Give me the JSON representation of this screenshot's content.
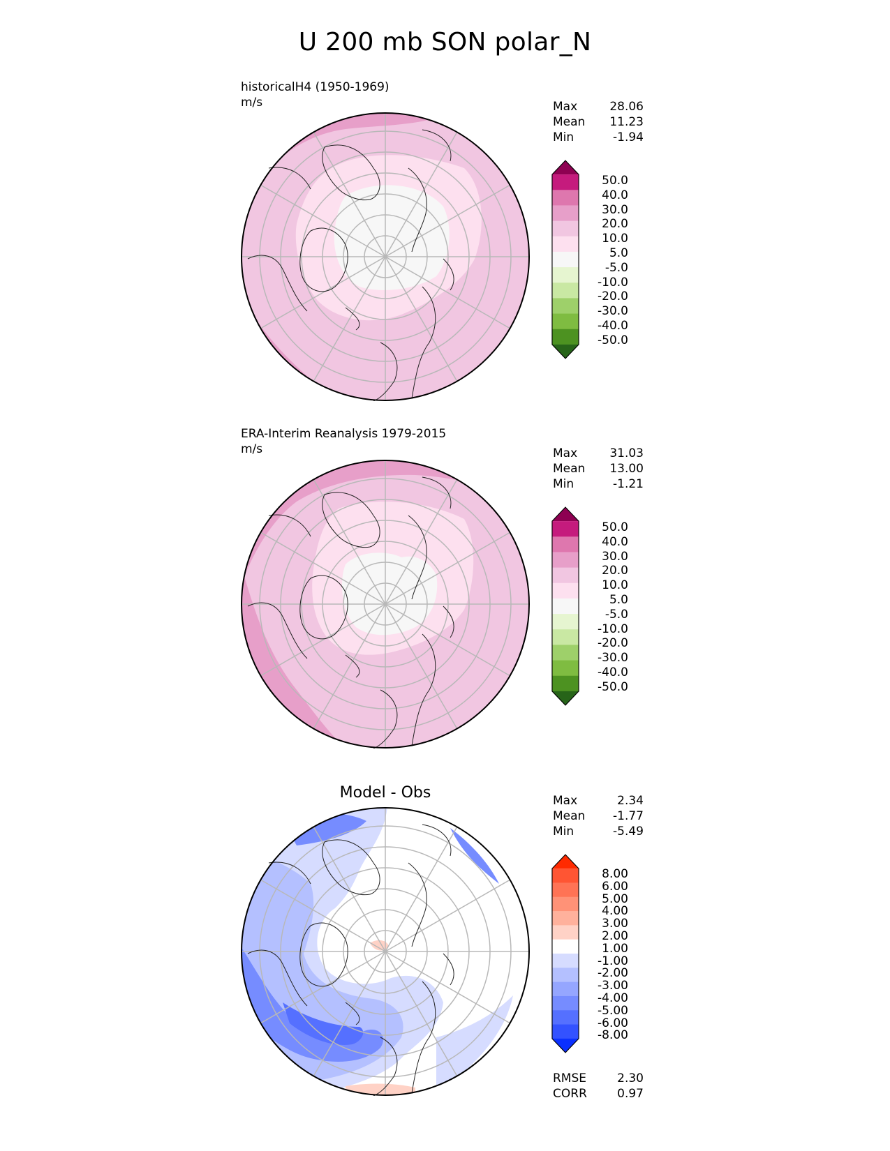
{
  "title": "U 200 mb SON polar_N",
  "panels": [
    {
      "label": "historicalH4 (1950-1969)",
      "units": "m/s",
      "stats": [
        {
          "name": "Max",
          "value": "28.06"
        },
        {
          "name": "Mean",
          "value": "11.23"
        },
        {
          "name": "Min",
          "value": "-1.94"
        }
      ],
      "colorbar_ticks": [
        "50.0",
        "40.0",
        "30.0",
        "20.0",
        "10.0",
        "5.0",
        "-5.0",
        "-10.0",
        "-20.0",
        "-30.0",
        "-40.0",
        "-50.0"
      ]
    },
    {
      "label": "ERA-Interim Reanalysis 1979-2015",
      "units": "m/s",
      "stats": [
        {
          "name": "Max",
          "value": "31.03"
        },
        {
          "name": "Mean",
          "value": "13.00"
        },
        {
          "name": "Min",
          "value": "-1.21"
        }
      ],
      "colorbar_ticks": [
        "50.0",
        "40.0",
        "30.0",
        "20.0",
        "10.0",
        "5.0",
        "-5.0",
        "-10.0",
        "-20.0",
        "-30.0",
        "-40.0",
        "-50.0"
      ]
    },
    {
      "title": "Model - Obs",
      "stats": [
        {
          "name": "Max",
          "value": "2.34"
        },
        {
          "name": "Mean",
          "value": "-1.77"
        },
        {
          "name": "Min",
          "value": "-5.49"
        }
      ],
      "colorbar_ticks": [
        "8.00",
        "6.00",
        "5.00",
        "4.00",
        "3.00",
        "2.00",
        "1.00",
        "-1.00",
        "-2.00",
        "-3.00",
        "-4.00",
        "-5.00",
        "-6.00",
        "-8.00"
      ],
      "metrics": [
        {
          "name": "RMSE",
          "value": "2.30"
        },
        {
          "name": "CORR",
          "value": "0.97"
        }
      ]
    }
  ],
  "colors": {
    "field_scale": [
      "#8e0152",
      "#c51b7d",
      "#de77ae",
      "#e79fc9",
      "#f1c6e1",
      "#fde0ef",
      "#f7f7f7",
      "#e6f5d0",
      "#c9e8a3",
      "#9ed06a",
      "#7fbc41",
      "#4d9221",
      "#276419"
    ],
    "diff_scale": [
      "#ff2a00",
      "#ff5533",
      "#ff7355",
      "#ff9277",
      "#ffb19c",
      "#ffd2c6",
      "#ffffff",
      "#d6dcff",
      "#b4c0ff",
      "#95a6ff",
      "#768cff",
      "#5570ff",
      "#3352ff",
      "#0a30ff"
    ]
  }
}
